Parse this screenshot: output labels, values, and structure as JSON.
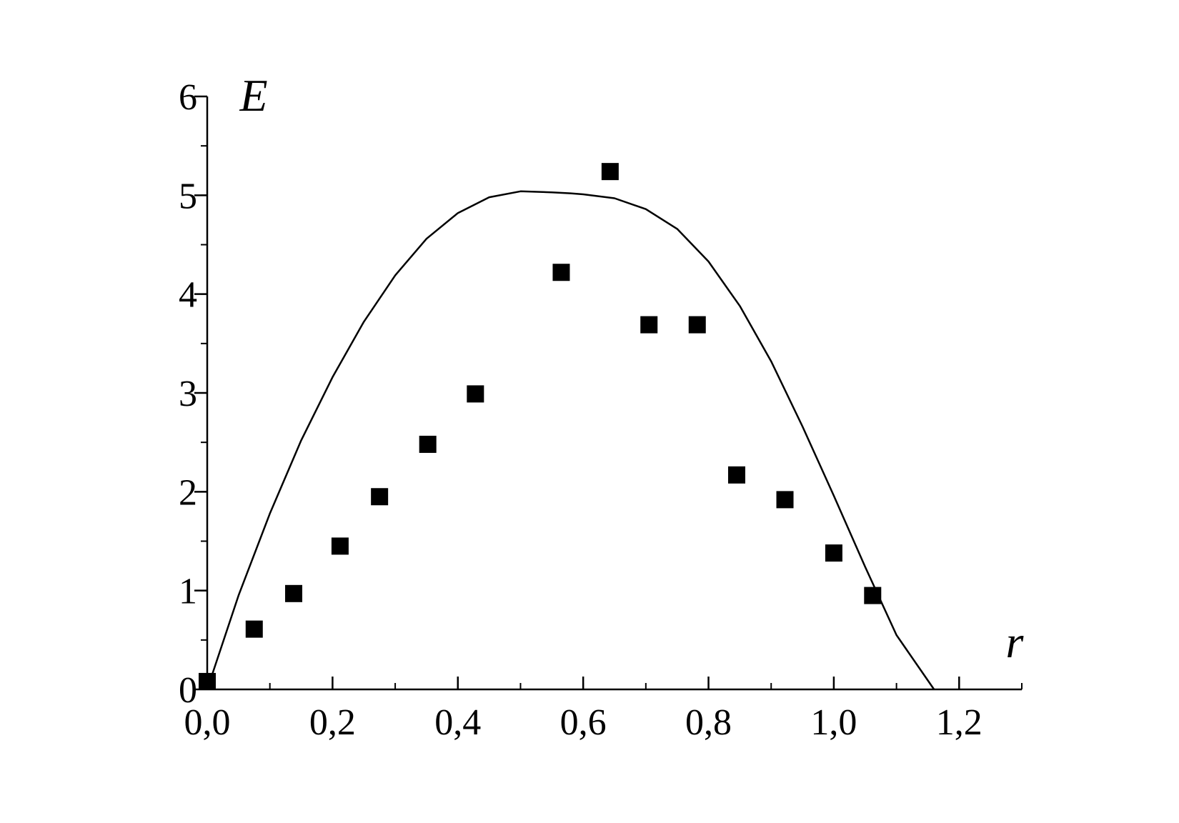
{
  "chart_data": {
    "type": "scatter",
    "title": "",
    "xlabel": "r",
    "ylabel": "E",
    "xlim": [
      0.0,
      1.3
    ],
    "ylim": [
      0,
      6
    ],
    "xticks": [
      {
        "value": 0.0,
        "label": "0,0"
      },
      {
        "value": 0.2,
        "label": "0,2"
      },
      {
        "value": 0.4,
        "label": "0,4"
      },
      {
        "value": 0.6,
        "label": "0,6"
      },
      {
        "value": 0.8,
        "label": "0,8"
      },
      {
        "value": 1.0,
        "label": "1,0"
      },
      {
        "value": 1.2,
        "label": "1,2"
      }
    ],
    "yticks": [
      {
        "value": 0,
        "label": "0"
      },
      {
        "value": 1,
        "label": "1"
      },
      {
        "value": 2,
        "label": "2"
      },
      {
        "value": 3,
        "label": "3"
      },
      {
        "value": 4,
        "label": "4"
      },
      {
        "value": 5,
        "label": "5"
      },
      {
        "value": 6,
        "label": "6"
      }
    ],
    "x_minor_step": 0.1,
    "y_minor_step": 0.5,
    "grid": false,
    "legend": "none",
    "series": [
      {
        "kind": "points",
        "marker": "square",
        "color": "#000000",
        "points": [
          [
            0.0,
            0.08
          ],
          [
            0.075,
            0.61
          ],
          [
            0.138,
            0.97
          ],
          [
            0.212,
            1.45
          ],
          [
            0.275,
            1.95
          ],
          [
            0.352,
            2.48
          ],
          [
            0.428,
            2.99
          ],
          [
            0.565,
            4.22
          ],
          [
            0.643,
            5.24
          ],
          [
            0.705,
            3.69
          ],
          [
            0.782,
            3.69
          ],
          [
            0.845,
            2.17
          ],
          [
            0.922,
            1.92
          ],
          [
            1.0,
            1.38
          ],
          [
            1.062,
            0.95
          ]
        ]
      },
      {
        "kind": "curve",
        "color": "#000000",
        "points": [
          [
            0.0,
            0.0
          ],
          [
            0.05,
            0.95
          ],
          [
            0.1,
            1.78
          ],
          [
            0.15,
            2.52
          ],
          [
            0.2,
            3.16
          ],
          [
            0.25,
            3.72
          ],
          [
            0.3,
            4.19
          ],
          [
            0.35,
            4.56
          ],
          [
            0.4,
            4.82
          ],
          [
            0.45,
            4.98
          ],
          [
            0.5,
            5.04
          ],
          [
            0.55,
            5.03
          ],
          [
            0.58,
            5.02
          ],
          [
            0.6,
            5.01
          ],
          [
            0.65,
            4.97
          ],
          [
            0.7,
            4.86
          ],
          [
            0.75,
            4.66
          ],
          [
            0.8,
            4.33
          ],
          [
            0.85,
            3.88
          ],
          [
            0.9,
            3.32
          ],
          [
            0.95,
            2.66
          ],
          [
            1.0,
            1.96
          ],
          [
            1.05,
            1.24
          ],
          [
            1.1,
            0.55
          ],
          [
            1.16,
            0.0
          ]
        ]
      }
    ]
  }
}
